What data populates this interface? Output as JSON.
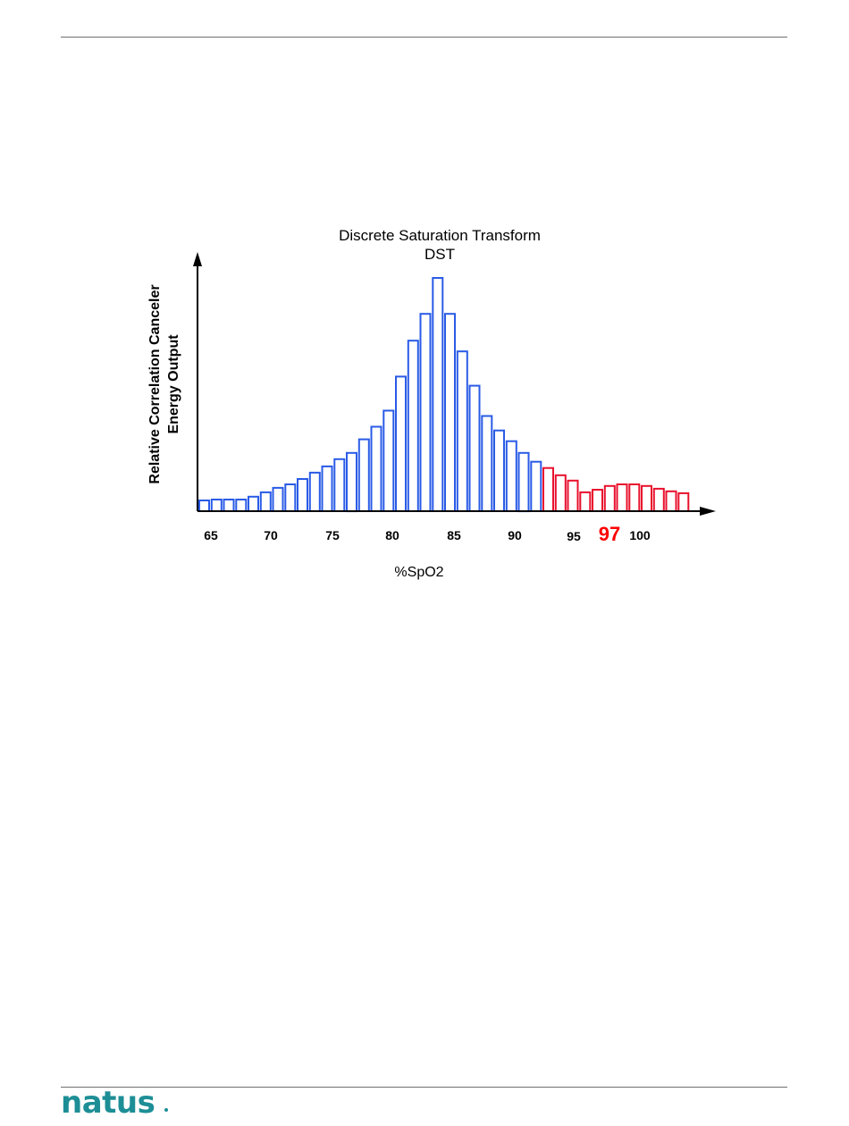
{
  "colors": {
    "low_series": "#2a5be6",
    "high_series": "#e8112d",
    "peak_label": "#ff0000",
    "rule": "#6f6f6f",
    "logo": "#1d8e96"
  },
  "chart_data": {
    "type": "bar",
    "title": "Discrete Saturation Transform",
    "subtitle": "DST",
    "xlabel": "%SpO2",
    "ylabel_line1": "Relative Correlation Canceler",
    "ylabel_line2": "Energy Output",
    "xlim": [
      64,
      106
    ],
    "ylim": [
      0,
      105
    ],
    "xticks": [
      65,
      70,
      75,
      80,
      85,
      90,
      95,
      100
    ],
    "highlight": {
      "x": 97,
      "label": "97"
    },
    "series": [
      {
        "x": [
          64,
          65,
          66,
          67,
          68,
          69,
          70,
          71,
          72,
          73,
          74,
          75,
          76,
          77,
          78,
          79,
          80,
          81,
          82,
          83,
          84,
          85,
          86,
          87,
          88,
          89,
          90,
          91
        ],
        "values": [
          4.6,
          5.0,
          5.0,
          5.0,
          6.2,
          8.1,
          10.0,
          11.5,
          13.8,
          16.5,
          19.2,
          22.3,
          25.0,
          30.8,
          36.2,
          43.1,
          57.7,
          73.1,
          84.6,
          100.0,
          84.6,
          68.5,
          53.8,
          40.8,
          34.6,
          30.0,
          25.0,
          21.2
        ]
      },
      {
        "x": [
          92,
          93,
          94,
          95,
          96,
          97,
          98,
          99,
          100,
          101,
          102,
          103
        ],
        "values": [
          18.5,
          15.4,
          13.1,
          8.1,
          9.2,
          10.8,
          11.5,
          11.5,
          10.8,
          9.6,
          8.5,
          7.7
        ]
      }
    ]
  },
  "footer": {
    "logo_text": "natus"
  }
}
